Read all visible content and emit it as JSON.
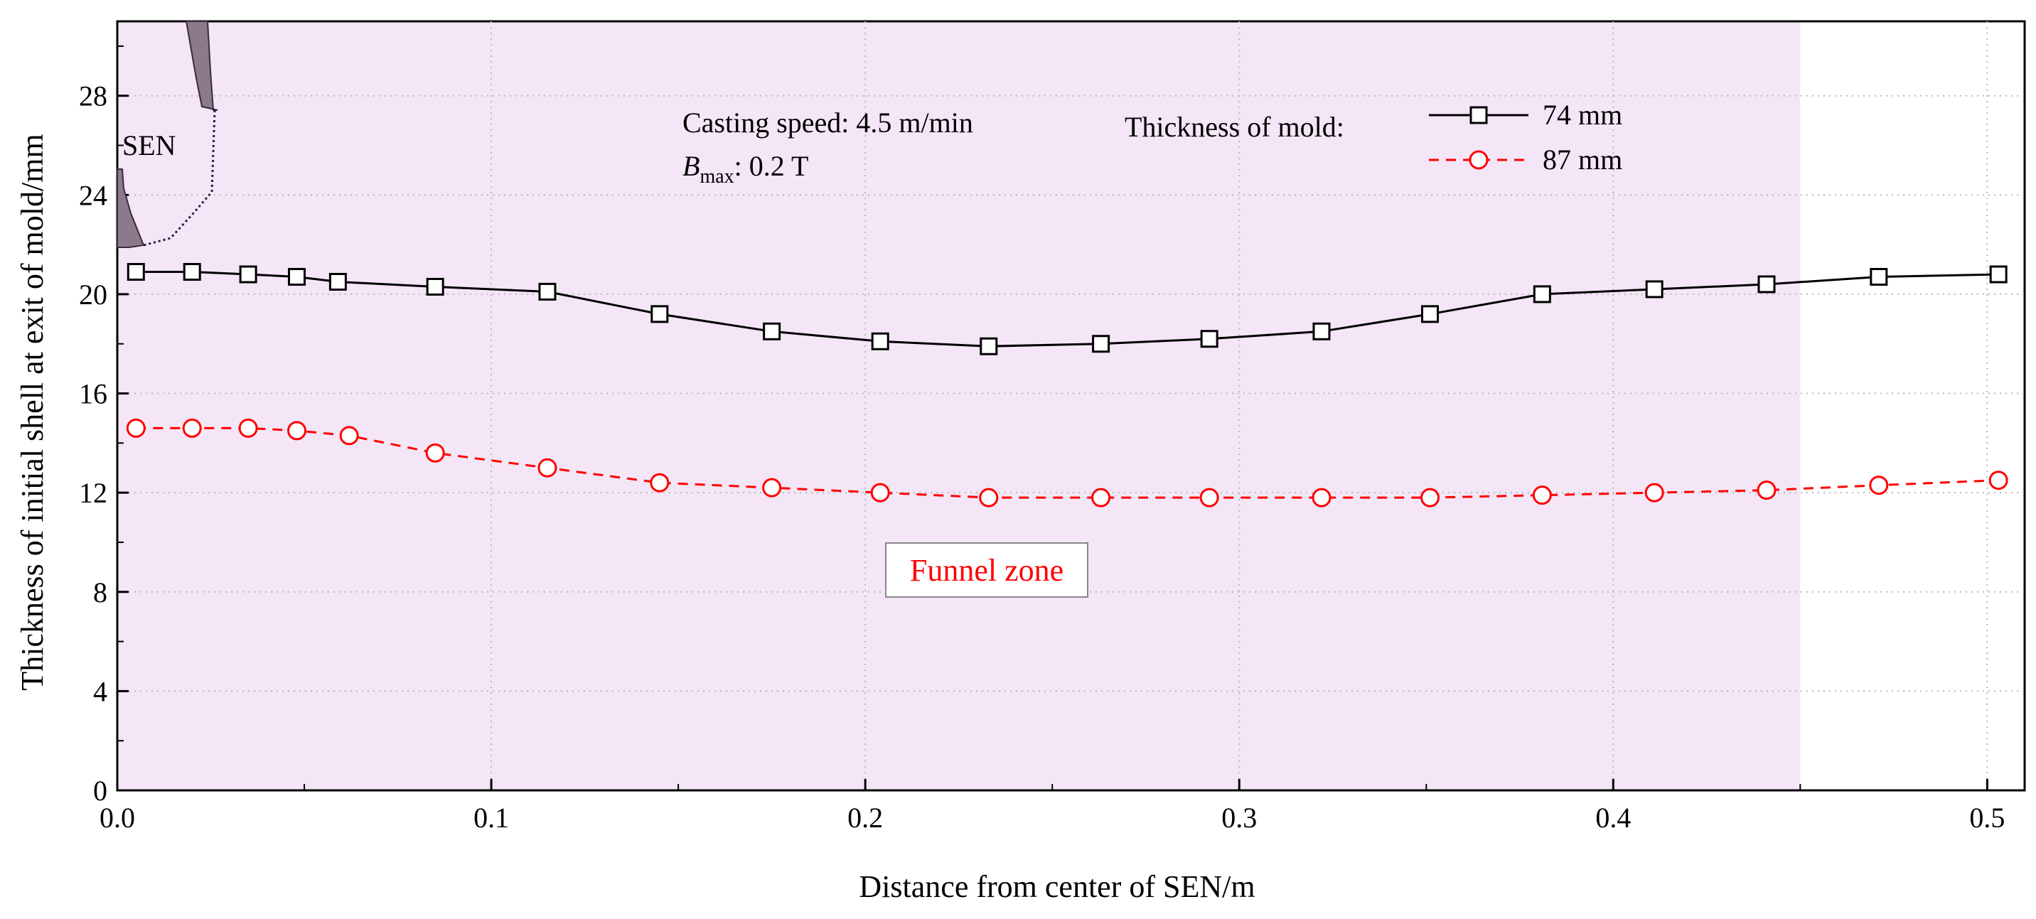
{
  "chart_data": {
    "type": "line",
    "xlabel": "Distance from center of SEN/m",
    "ylabel": "Thickness of initial shell at exit of mold/mm",
    "xlim": [
      0.0,
      0.51
    ],
    "ylim": [
      0,
      31
    ],
    "x_ticks": [
      "0.0",
      "0.1",
      "0.2",
      "0.3",
      "0.4",
      "0.5"
    ],
    "x_tick_values": [
      0.0,
      0.1,
      0.2,
      0.3,
      0.4,
      0.5
    ],
    "y_ticks": [
      "0",
      "4",
      "8",
      "12",
      "16",
      "20",
      "24",
      "28"
    ],
    "y_tick_values": [
      0,
      4,
      8,
      12,
      16,
      20,
      24,
      28
    ],
    "grid": true,
    "funnel_zone": {
      "x_start": 0.0,
      "x_end": 0.45,
      "color": "#f4e6f6",
      "label": "Funnel zone",
      "label_color": "#ff0000"
    },
    "sen_label": "SEN",
    "annotations": {
      "casting_speed": "Casting speed: 4.5 m/min",
      "bmax_symbol": "B",
      "bmax_subscript": "max",
      "bmax_value": ": 0.2 T"
    },
    "legend_title": "Thickness of mold:",
    "series": [
      {
        "name": "74 mm",
        "color": "#000000",
        "line_style": "solid",
        "marker": "square",
        "x": [
          0.005,
          0.02,
          0.035,
          0.048,
          0.059,
          0.085,
          0.115,
          0.145,
          0.175,
          0.204,
          0.233,
          0.263,
          0.292,
          0.322,
          0.351,
          0.381,
          0.411,
          0.441,
          0.471,
          0.503
        ],
        "y": [
          20.9,
          20.9,
          20.8,
          20.7,
          20.5,
          20.3,
          20.1,
          19.2,
          18.5,
          18.1,
          17.9,
          18.0,
          18.2,
          18.5,
          19.2,
          20.0,
          20.2,
          20.4,
          20.7,
          20.8
        ]
      },
      {
        "name": "87 mm",
        "color": "#ff0000",
        "line_style": "dashed",
        "marker": "circle",
        "x": [
          0.005,
          0.02,
          0.035,
          0.048,
          0.062,
          0.085,
          0.115,
          0.145,
          0.175,
          0.204,
          0.233,
          0.263,
          0.292,
          0.322,
          0.351,
          0.381,
          0.411,
          0.441,
          0.471,
          0.503
        ],
        "y": [
          14.6,
          14.6,
          14.6,
          14.5,
          14.3,
          13.6,
          13.0,
          12.4,
          12.2,
          12.0,
          11.8,
          11.8,
          11.8,
          11.8,
          11.8,
          11.9,
          12.0,
          12.1,
          12.3,
          12.5
        ]
      }
    ]
  }
}
